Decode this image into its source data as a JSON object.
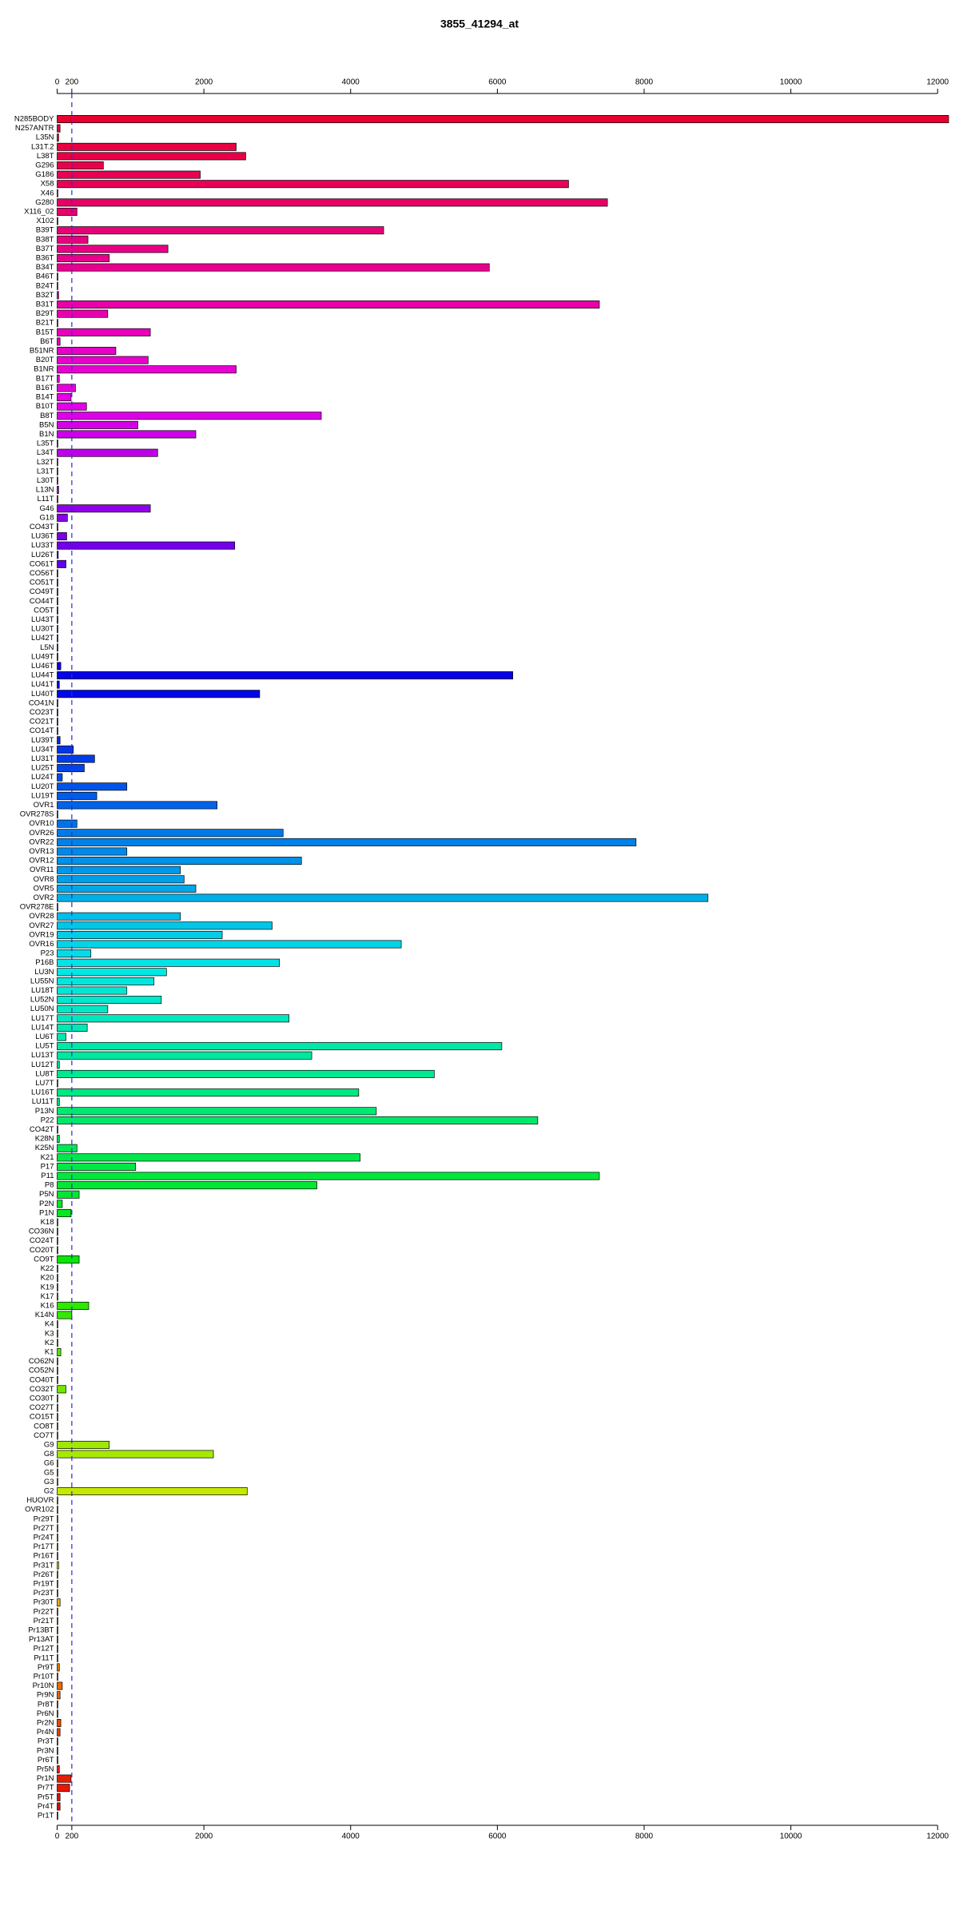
{
  "chart_data": {
    "type": "barh",
    "title": "3855_41294_at",
    "categories": [
      "N285BODY",
      "N257ANTR",
      "L35N",
      "L31T.2",
      "L38T",
      "G296",
      "G186",
      "X58",
      "X46",
      "G280",
      "X116_02",
      "X102",
      "B39T",
      "B38T",
      "B37T",
      "B36T",
      "B34T",
      "B46T",
      "B24T",
      "B32T",
      "B31T",
      "B29T",
      "B21T",
      "B15T",
      "B6T",
      "B51NR",
      "B20T",
      "B1NR",
      "B17T",
      "B16T",
      "B14T",
      "B10T",
      "B8T",
      "B5N",
      "B1N",
      "L35T",
      "L34T",
      "L32T",
      "L31T",
      "L30T",
      "L13N",
      "L11T",
      "G46",
      "G18",
      "CO43T",
      "LU36T",
      "LU33T",
      "LU26T",
      "CO61T",
      "CO56T",
      "CO51T",
      "CO49T",
      "CO44T",
      "CO5T",
      "LU43T",
      "LU30T",
      "LU42T",
      "L5N",
      "LU49T",
      "LU46T",
      "LU44T",
      "LU41T",
      "LU40T",
      "CO41N",
      "CO23T",
      "CO21T",
      "CO14T",
      "LU39T",
      "LU34T",
      "LU31T",
      "LU25T",
      "LU24T",
      "LU20T",
      "LU19T",
      "OVR1",
      "OVR278S",
      "OVR10",
      "OVR26",
      "OVR22",
      "OVR13",
      "OVR12",
      "OVR11",
      "OVR8",
      "OVR5",
      "OVR2",
      "OVR278E",
      "OVR28",
      "OVR27",
      "OVR19",
      "OVR16",
      "P23",
      "P16B",
      "LU3N",
      "LU55N",
      "LU18T",
      "LU52N",
      "LU50N",
      "LU17T",
      "LU14T",
      "LU6T",
      "LU5T",
      "LU13T",
      "LU12T",
      "LU8T",
      "LU7T",
      "LU16T",
      "LU11T",
      "P13N",
      "P22",
      "CO42T",
      "K28N",
      "K25N",
      "K21",
      "P17",
      "P11",
      "P8",
      "P5N",
      "P2N",
      "P1N",
      "K18",
      "CO36N",
      "CO24T",
      "CO20T",
      "CO9T",
      "K22",
      "K20",
      "K19",
      "K17",
      "K16",
      "K14N",
      "K4",
      "K3",
      "K2",
      "K1",
      "CO62N",
      "CO52N",
      "CO40T",
      "CO32T",
      "CO30T",
      "CO27T",
      "CO15T",
      "CO8T",
      "CO7T",
      "G9",
      "G8",
      "G6",
      "G5",
      "G3",
      "G2",
      "HUOVR",
      "OVR102",
      "Pr29T",
      "Pr27T",
      "Pr24T",
      "Pr17T",
      "Pr16T",
      "Pr31T",
      "Pr26T",
      "Pr19T",
      "Pr23T",
      "Pr30T",
      "Pr22T",
      "Pr21T",
      "Pr13BT",
      "Pr13AT",
      "Pr12T",
      "Pr11T",
      "Pr9T",
      "Pr10T",
      "Pr10N",
      "Pr9N",
      "Pr8T",
      "Pr6N",
      "Pr2N",
      "Pr4N",
      "Pr3T",
      "Pr3N",
      "Pr6T",
      "Pr5N",
      "Pr1N",
      "Pr7T",
      "Pr5T",
      "Pr4T",
      "Pr1T"
    ],
    "values": [
      12150,
      40,
      20,
      2440,
      2570,
      630,
      1950,
      6970,
      10,
      7500,
      270,
      10,
      4450,
      420,
      1510,
      710,
      5890,
      10,
      10,
      20,
      7390,
      690,
      10,
      1270,
      40,
      800,
      1240,
      2440,
      30,
      250,
      190,
      400,
      3600,
      1100,
      1890,
      10,
      1370,
      10,
      10,
      10,
      20,
      10,
      1270,
      140,
      10,
      130,
      2420,
      15,
      120,
      10,
      10,
      10,
      10,
      10,
      10,
      10,
      10,
      10,
      10,
      50,
      6210,
      30,
      2760,
      10,
      10,
      10,
      10,
      40,
      220,
      510,
      370,
      70,
      950,
      540,
      2180,
      10,
      270,
      3080,
      7890,
      950,
      3330,
      1680,
      1730,
      1890,
      8870,
      10,
      1680,
      2930,
      2250,
      4690,
      460,
      3030,
      1490,
      1320,
      950,
      1420,
      690,
      3160,
      410,
      120,
      6060,
      3470,
      30,
      5140,
      10,
      4110,
      30,
      4350,
      6550,
      10,
      30,
      270,
      4130,
      1070,
      7390,
      3540,
      300,
      70,
      190,
      10,
      10,
      10,
      10,
      300,
      10,
      10,
      10,
      10,
      430,
      200,
      10,
      10,
      10,
      50,
      10,
      10,
      10,
      120,
      10,
      10,
      10,
      10,
      10,
      710,
      2130,
      10,
      10,
      10,
      2590,
      10,
      10,
      10,
      10,
      10,
      10,
      10,
      20,
      10,
      10,
      10,
      40,
      10,
      10,
      10,
      10,
      10,
      10,
      30,
      10,
      70,
      40,
      10,
      10,
      50,
      40,
      10,
      10,
      10,
      30,
      190,
      170,
      40,
      40,
      10
    ],
    "color_stops": [
      "#e8002f",
      "#e800e8",
      "#0000e8",
      "#00e8e8",
      "#00e800",
      "#e8e800",
      "#e80000"
    ],
    "xlim": [
      0,
      12150
    ],
    "xticks": [
      0,
      200,
      2000,
      4000,
      6000,
      8000,
      10000,
      12000
    ],
    "reference_line": 200
  }
}
